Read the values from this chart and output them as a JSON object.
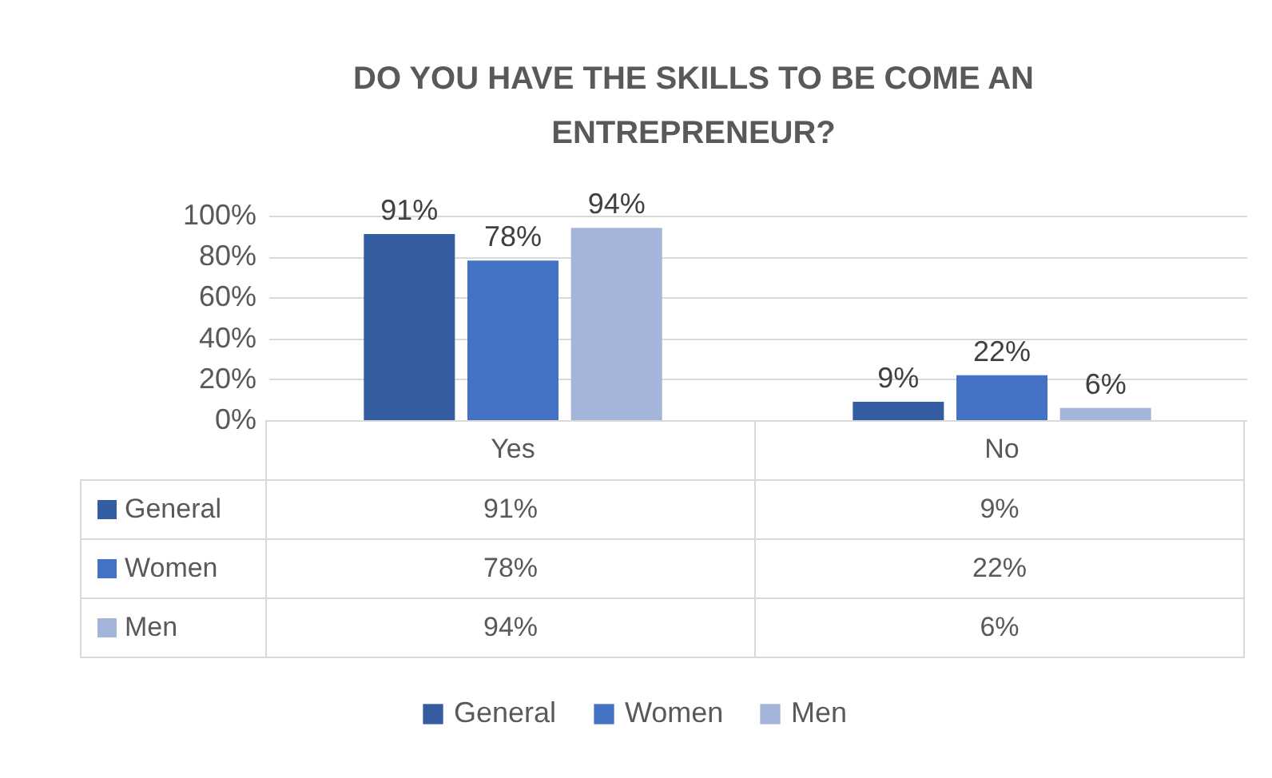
{
  "chart_data": {
    "type": "bar",
    "title": "DO YOU HAVE THE SKILLS TO BE COME AN ENTREPRENEUR?",
    "categories": [
      "Yes",
      "No"
    ],
    "series": [
      {
        "name": "General",
        "color": "#355ea2",
        "values": [
          91,
          9
        ],
        "value_labels": [
          "91%",
          "9%"
        ]
      },
      {
        "name": "Women",
        "color": "#4472c4",
        "values": [
          78,
          22
        ],
        "value_labels": [
          "78%",
          "22%"
        ]
      },
      {
        "name": "Men",
        "color": "#a5b4da",
        "values": [
          94,
          6
        ],
        "value_labels": [
          "94%",
          "6%"
        ]
      }
    ],
    "ylim": [
      0,
      100
    ],
    "yticks": [
      {
        "value": 0,
        "label": "0%"
      },
      {
        "value": 20,
        "label": "20%"
      },
      {
        "value": 40,
        "label": "40%"
      },
      {
        "value": 60,
        "label": "60%"
      },
      {
        "value": 80,
        "label": "80%"
      },
      {
        "value": 100,
        "label": "100%"
      }
    ],
    "grid": "y",
    "legend": "bottom"
  }
}
